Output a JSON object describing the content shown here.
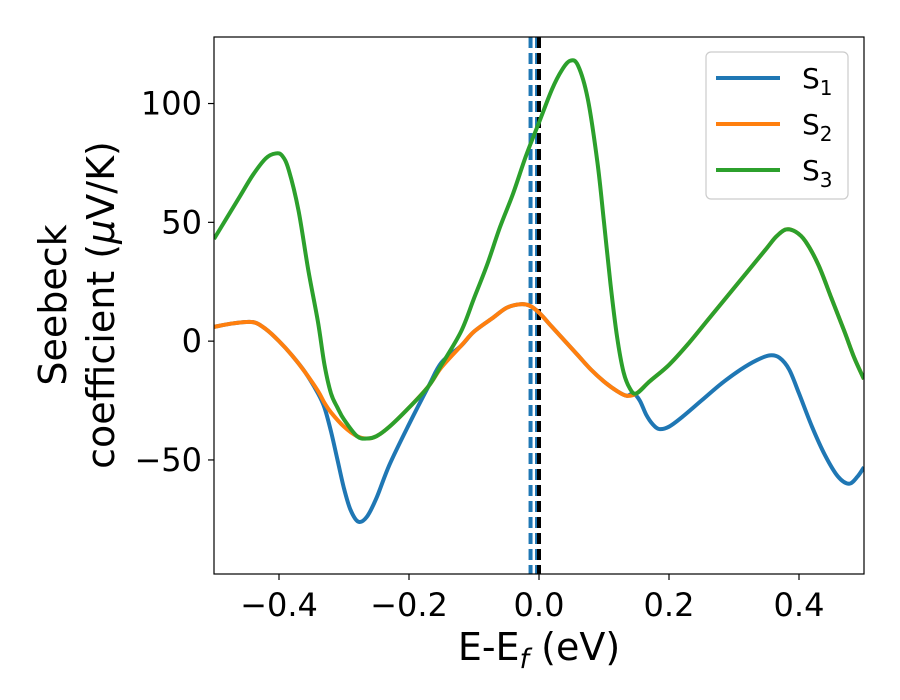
{
  "chart_data": {
    "type": "line",
    "xlabel": "E-E",
    "xlabel_sub": "f",
    "xlabel_suffix": " (eV)",
    "ylabel_line1": "Seebeck",
    "ylabel_line2_a": "coefficient  (",
    "ylabel_line2_mu": "μ",
    "ylabel_line2_b": "V/K)",
    "xlim": [
      -0.5,
      0.5
    ],
    "ylim": [
      -98,
      128
    ],
    "xticks": [
      -0.4,
      -0.2,
      0.0,
      0.2,
      0.4
    ],
    "xtick_labels": [
      "−0.4",
      "−0.2",
      "0.0",
      "0.2",
      "0.4"
    ],
    "yticks": [
      -50,
      0,
      50,
      100
    ],
    "ytick_labels": [
      "−50",
      "0",
      "50",
      "100"
    ],
    "grid": false,
    "legend_position": "top-right",
    "vlines": [
      {
        "x": -0.013,
        "color": "#1f77b4",
        "style": "dashed"
      },
      {
        "x": -0.003,
        "color": "#1f77b4",
        "style": "dashed"
      },
      {
        "x": 0.0,
        "color": "#000000",
        "style": "dashed"
      }
    ],
    "series": [
      {
        "name": "S",
        "name_sub": "1",
        "color": "#1f77b4",
        "points": [
          [
            -0.5,
            6
          ],
          [
            -0.47,
            7.5
          ],
          [
            -0.44,
            8
          ],
          [
            -0.42,
            5
          ],
          [
            -0.4,
            0
          ],
          [
            -0.38,
            -6
          ],
          [
            -0.36,
            -13
          ],
          [
            -0.34,
            -22
          ],
          [
            -0.33,
            -28
          ],
          [
            -0.32,
            -38
          ],
          [
            -0.31,
            -50
          ],
          [
            -0.3,
            -62
          ],
          [
            -0.29,
            -71
          ],
          [
            -0.278,
            -76
          ],
          [
            -0.265,
            -74
          ],
          [
            -0.25,
            -66
          ],
          [
            -0.23,
            -52
          ],
          [
            -0.2,
            -35
          ],
          [
            -0.17,
            -19
          ],
          [
            -0.15,
            -9
          ],
          [
            -0.12,
            -2
          ],
          [
            -0.1,
            4
          ],
          [
            -0.07,
            10
          ],
          [
            -0.05,
            14
          ],
          [
            -0.03,
            15.5
          ],
          [
            -0.015,
            15
          ],
          [
            0.0,
            12
          ],
          [
            0.02,
            6
          ],
          [
            0.04,
            0
          ],
          [
            0.06,
            -6
          ],
          [
            0.08,
            -12
          ],
          [
            0.1,
            -17
          ],
          [
            0.12,
            -21
          ],
          [
            0.135,
            -23
          ],
          [
            0.145,
            -22
          ],
          [
            0.155,
            -25
          ],
          [
            0.165,
            -31
          ],
          [
            0.175,
            -35
          ],
          [
            0.185,
            -37
          ],
          [
            0.2,
            -36
          ],
          [
            0.22,
            -32
          ],
          [
            0.25,
            -25
          ],
          [
            0.28,
            -18
          ],
          [
            0.31,
            -12
          ],
          [
            0.335,
            -8
          ],
          [
            0.355,
            -6
          ],
          [
            0.37,
            -7
          ],
          [
            0.385,
            -12
          ],
          [
            0.4,
            -22
          ],
          [
            0.42,
            -36
          ],
          [
            0.44,
            -48
          ],
          [
            0.46,
            -57
          ],
          [
            0.477,
            -60
          ],
          [
            0.49,
            -57
          ],
          [
            0.5,
            -53
          ]
        ]
      },
      {
        "name": "S",
        "name_sub": "2",
        "color": "#ff7f0e",
        "points": [
          [
            -0.5,
            6
          ],
          [
            -0.47,
            7.5
          ],
          [
            -0.44,
            8
          ],
          [
            -0.42,
            5
          ],
          [
            -0.4,
            0
          ],
          [
            -0.38,
            -6
          ],
          [
            -0.36,
            -13
          ],
          [
            -0.34,
            -21
          ],
          [
            -0.33,
            -26
          ],
          [
            -0.32,
            -30
          ],
          [
            -0.3,
            -36
          ],
          [
            -0.28,
            -40
          ],
          [
            -0.265,
            -41
          ],
          [
            -0.25,
            -40
          ],
          [
            -0.23,
            -36
          ],
          [
            -0.2,
            -28
          ],
          [
            -0.17,
            -19
          ],
          [
            -0.15,
            -11
          ],
          [
            -0.12,
            -2
          ],
          [
            -0.1,
            4
          ],
          [
            -0.07,
            10
          ],
          [
            -0.05,
            14
          ],
          [
            -0.03,
            15.5
          ],
          [
            -0.015,
            15
          ],
          [
            0.0,
            12
          ],
          [
            0.02,
            6
          ],
          [
            0.04,
            0
          ],
          [
            0.06,
            -6
          ],
          [
            0.08,
            -12
          ],
          [
            0.1,
            -17
          ],
          [
            0.12,
            -21
          ],
          [
            0.135,
            -23
          ],
          [
            0.15,
            -22
          ],
          [
            0.17,
            -17
          ],
          [
            0.2,
            -10
          ],
          [
            0.23,
            -1
          ],
          [
            0.26,
            9
          ],
          [
            0.29,
            19
          ],
          [
            0.32,
            29
          ],
          [
            0.35,
            39
          ],
          [
            0.365,
            44
          ],
          [
            0.38,
            47
          ],
          [
            0.395,
            46
          ],
          [
            0.41,
            42
          ],
          [
            0.43,
            32
          ],
          [
            0.45,
            18
          ],
          [
            0.47,
            4
          ],
          [
            0.485,
            -7
          ],
          [
            0.5,
            -16
          ]
        ]
      },
      {
        "name": "S",
        "name_sub": "3",
        "color": "#2ca02c",
        "points": [
          [
            -0.5,
            43
          ],
          [
            -0.48,
            52
          ],
          [
            -0.46,
            61
          ],
          [
            -0.44,
            70
          ],
          [
            -0.42,
            77
          ],
          [
            -0.405,
            79
          ],
          [
            -0.395,
            78
          ],
          [
            -0.385,
            72
          ],
          [
            -0.37,
            55
          ],
          [
            -0.355,
            30
          ],
          [
            -0.34,
            8
          ],
          [
            -0.33,
            -10
          ],
          [
            -0.32,
            -22
          ],
          [
            -0.31,
            -28
          ],
          [
            -0.3,
            -33
          ],
          [
            -0.28,
            -40
          ],
          [
            -0.265,
            -41
          ],
          [
            -0.25,
            -40
          ],
          [
            -0.23,
            -36
          ],
          [
            -0.2,
            -28
          ],
          [
            -0.17,
            -19
          ],
          [
            -0.15,
            -10
          ],
          [
            -0.12,
            4
          ],
          [
            -0.1,
            18
          ],
          [
            -0.08,
            32
          ],
          [
            -0.06,
            48
          ],
          [
            -0.04,
            62
          ],
          [
            -0.02,
            78
          ],
          [
            0.0,
            92
          ],
          [
            0.02,
            106
          ],
          [
            0.035,
            114
          ],
          [
            0.048,
            118
          ],
          [
            0.06,
            116
          ],
          [
            0.075,
            102
          ],
          [
            0.09,
            75
          ],
          [
            0.1,
            50
          ],
          [
            0.11,
            24
          ],
          [
            0.12,
            2
          ],
          [
            0.13,
            -13
          ],
          [
            0.14,
            -20
          ],
          [
            0.15,
            -22
          ],
          [
            0.17,
            -17
          ],
          [
            0.2,
            -10
          ],
          [
            0.23,
            -1
          ],
          [
            0.26,
            9
          ],
          [
            0.29,
            19
          ],
          [
            0.32,
            29
          ],
          [
            0.35,
            39
          ],
          [
            0.365,
            44
          ],
          [
            0.38,
            47
          ],
          [
            0.395,
            46
          ],
          [
            0.41,
            42
          ],
          [
            0.43,
            32
          ],
          [
            0.45,
            18
          ],
          [
            0.47,
            4
          ],
          [
            0.485,
            -7
          ],
          [
            0.5,
            -16
          ]
        ]
      }
    ]
  }
}
